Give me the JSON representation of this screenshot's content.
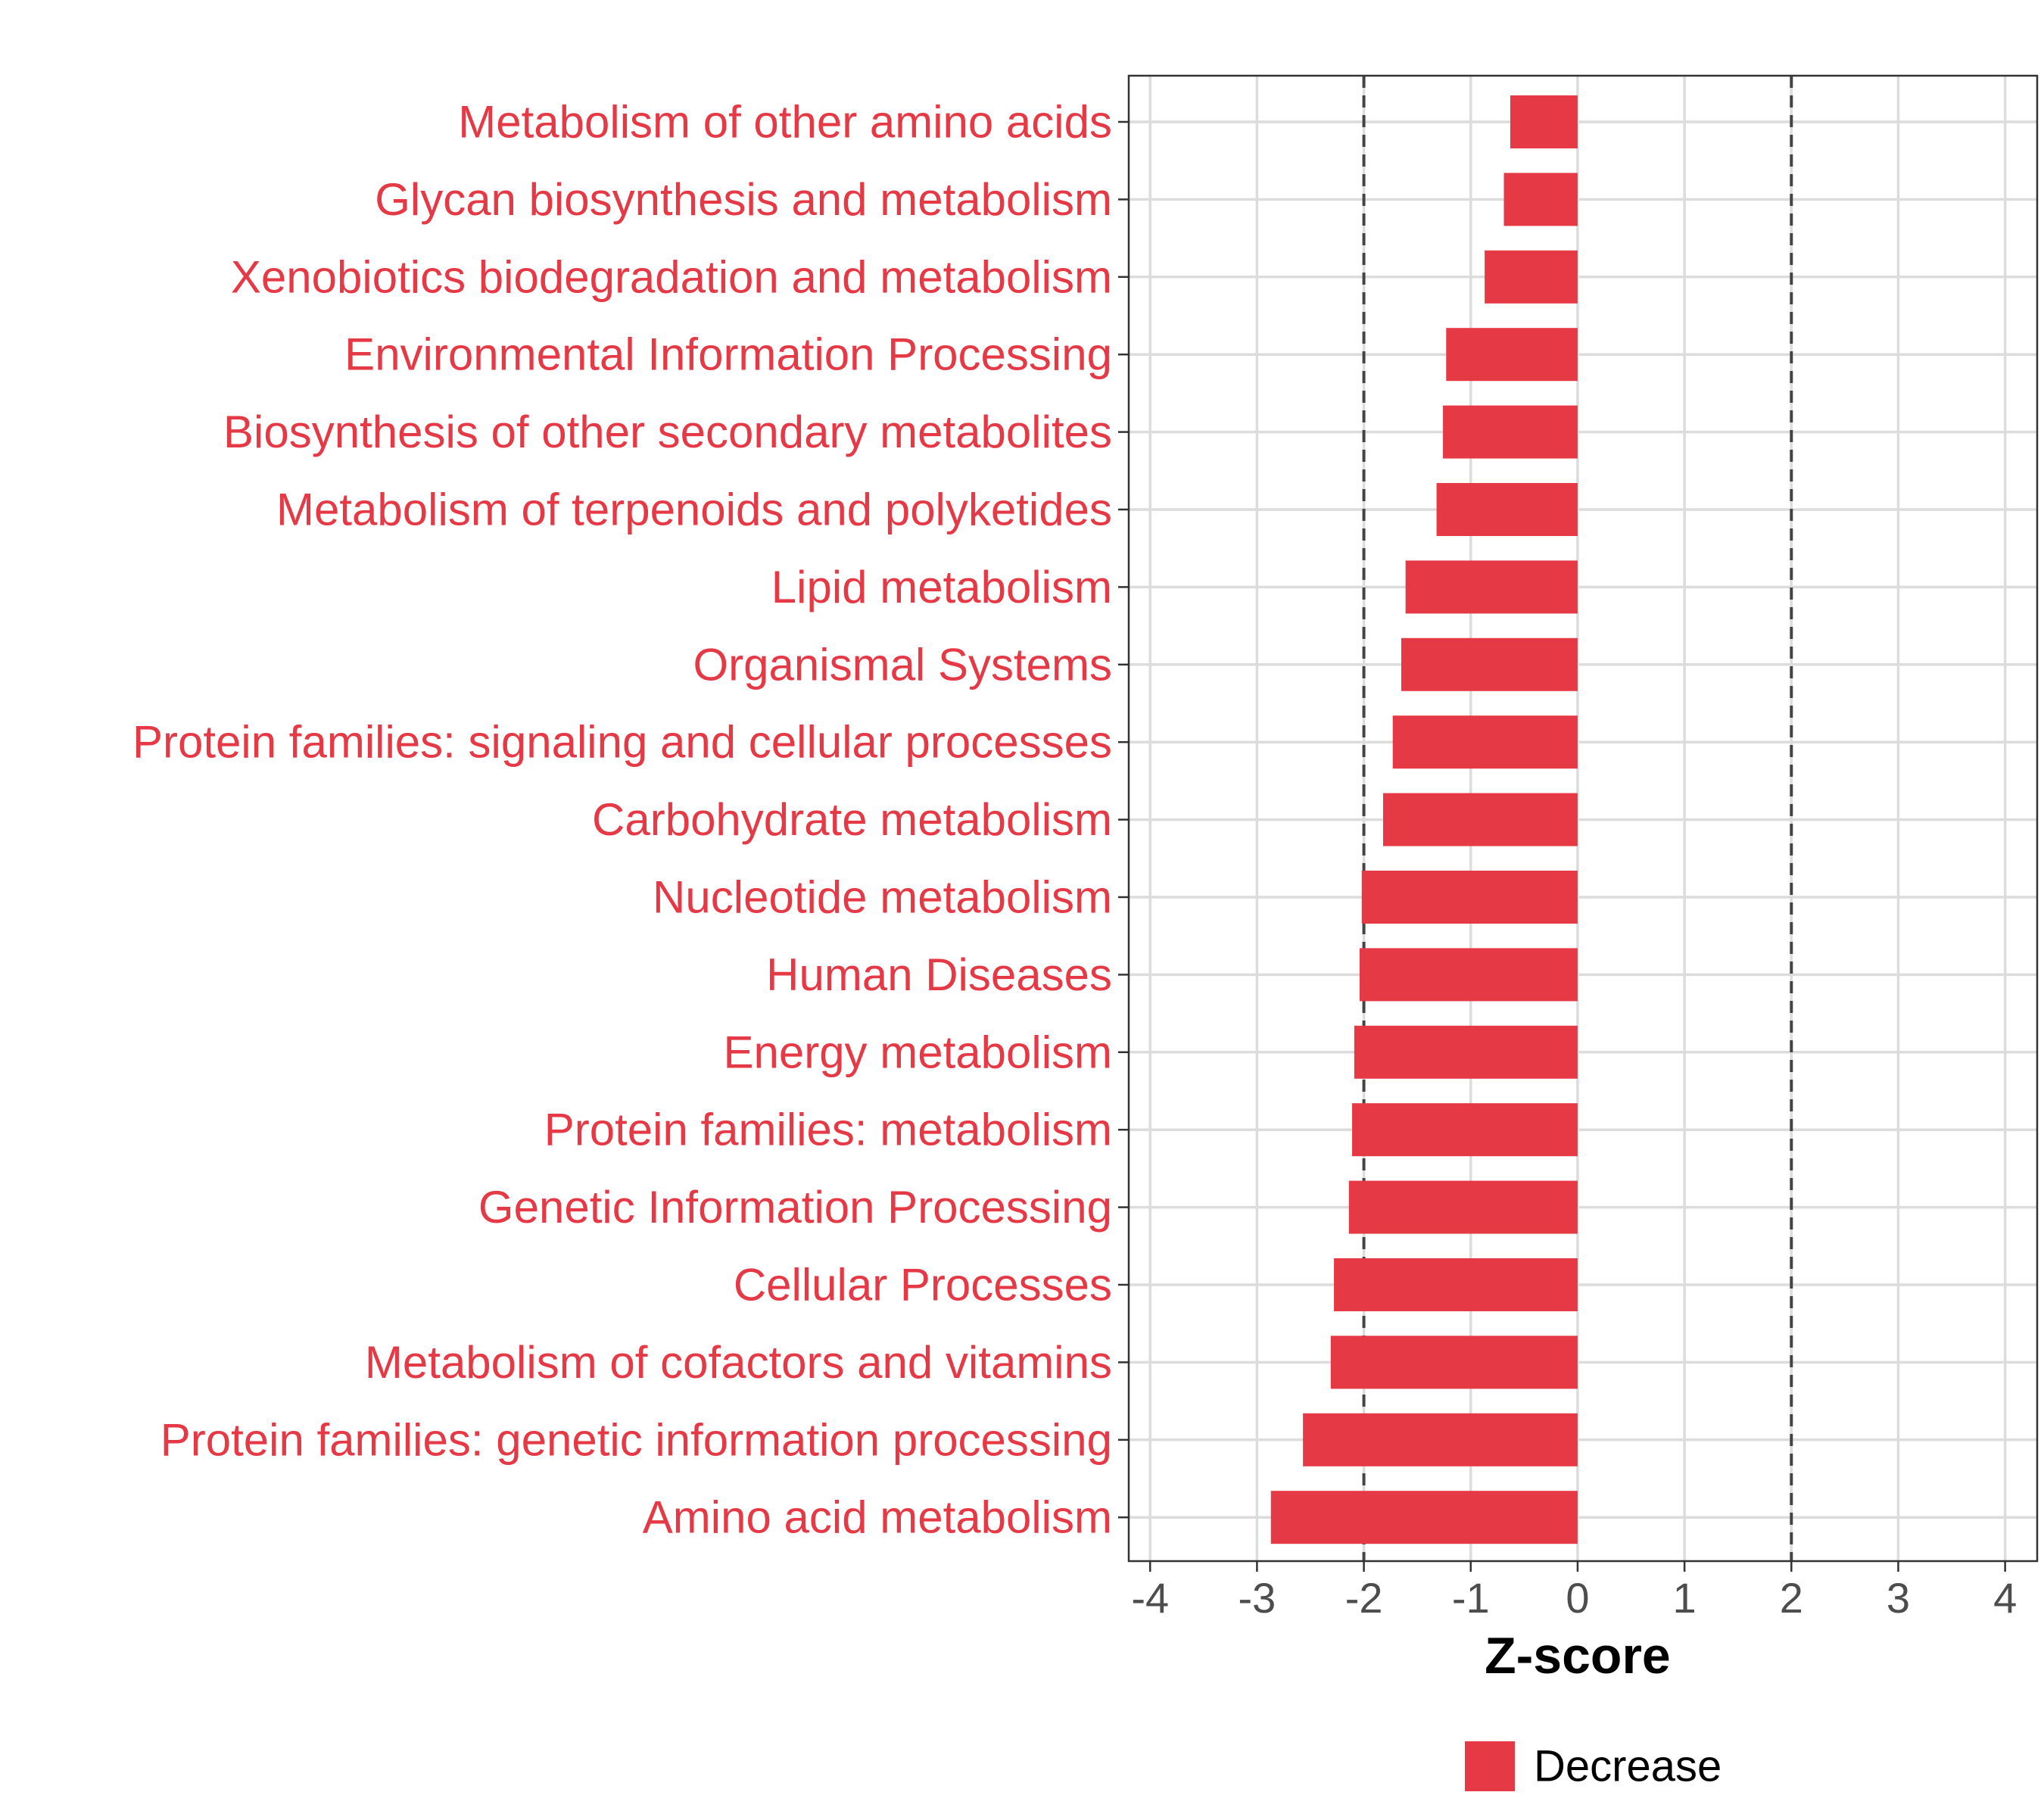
{
  "chart_data": {
    "type": "bar",
    "orientation": "horizontal",
    "categories": [
      "Metabolism of other amino acids",
      "Glycan biosynthesis and metabolism",
      "Xenobiotics biodegradation and metabolism",
      "Environmental Information Processing",
      "Biosynthesis of other secondary metabolites",
      "Metabolism of terpenoids and polyketides",
      "Lipid metabolism",
      "Organismal Systems",
      "Protein families: signaling and cellular processes",
      "Carbohydrate metabolism",
      "Nucleotide metabolism",
      "Human Diseases",
      "Energy metabolism",
      "Protein families: metabolism",
      "Genetic Information Processing",
      "Cellular Processes",
      "Metabolism of cofactors and vitamins",
      "Protein families: genetic information processing",
      "Amino acid metabolism"
    ],
    "values": [
      -0.63,
      -0.69,
      -0.87,
      -1.23,
      -1.26,
      -1.32,
      -1.61,
      -1.65,
      -1.73,
      -1.82,
      -2.02,
      -2.04,
      -2.09,
      -2.11,
      -2.14,
      -2.28,
      -2.31,
      -2.57,
      -2.87
    ],
    "series": [
      {
        "name": "Decrease",
        "color": "#E63946"
      }
    ],
    "title": "",
    "xlabel": "Z-score",
    "ylabel": "",
    "xlim": [
      -4.2,
      4.3
    ],
    "xticks": [
      -4,
      -3,
      -2,
      -1,
      0,
      1,
      2,
      3,
      4
    ],
    "xtick_labels": [
      "-4",
      "-3",
      "-2",
      "-1",
      "0",
      "1",
      "2",
      "3",
      "4"
    ],
    "reference_lines": [
      -2,
      2
    ],
    "grid": true,
    "legend_position": "bottom",
    "label_color": "#E63946"
  }
}
